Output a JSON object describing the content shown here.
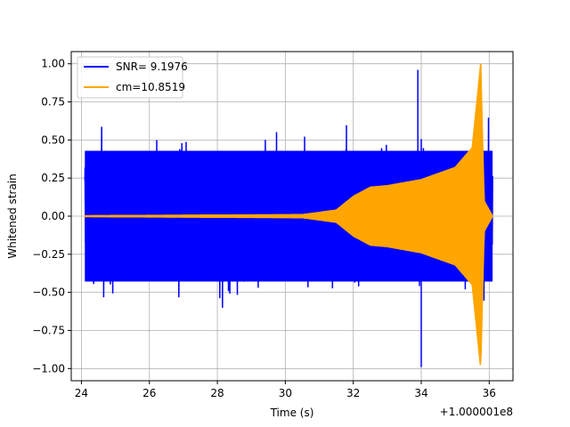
{
  "chart_data": {
    "type": "line",
    "title": "",
    "xlabel": "Time (s)",
    "ylabel": "Whitened strain",
    "x_offset_label": "+1.000001e8",
    "xlim": [
      23.7,
      36.7
    ],
    "ylim": [
      -1.08,
      1.08
    ],
    "x_ticks": [
      24,
      26,
      28,
      30,
      32,
      34,
      36
    ],
    "x_tick_labels": [
      "24",
      "26",
      "28",
      "30",
      "32",
      "34",
      "36"
    ],
    "y_ticks": [
      -1.0,
      -0.75,
      -0.5,
      -0.25,
      0.0,
      0.25,
      0.5,
      0.75,
      1.0
    ],
    "y_tick_labels": [
      "−1.00",
      "−0.75",
      "−0.50",
      "−0.25",
      "0.00",
      "0.25",
      "0.50",
      "0.75",
      "1.00"
    ],
    "grid": true,
    "legend_position": "top-left",
    "series": [
      {
        "name": "SNR= 9.1976",
        "color": "#0000ff",
        "kind": "noise",
        "x_range": [
          24.1,
          36.1
        ],
        "typical_peak": 0.55,
        "max": 0.96,
        "min": -0.99
      },
      {
        "name": "cm=10.8519",
        "color": "#ffa500",
        "kind": "chirp",
        "x_range": [
          24.1,
          36.1
        ],
        "envelope_points": [
          {
            "x": 24.1,
            "y": 0.003
          },
          {
            "x": 30.5,
            "y": 0.01
          },
          {
            "x": 31.5,
            "y": 0.04
          },
          {
            "x": 32.0,
            "y": 0.13
          },
          {
            "x": 32.5,
            "y": 0.19
          },
          {
            "x": 33.0,
            "y": 0.2
          },
          {
            "x": 34.0,
            "y": 0.24
          },
          {
            "x": 35.0,
            "y": 0.32
          },
          {
            "x": 35.5,
            "y": 0.45
          },
          {
            "x": 35.75,
            "y": 1.0
          },
          {
            "x": 35.85,
            "y": 0.1
          },
          {
            "x": 36.1,
            "y": 0.0
          }
        ]
      }
    ]
  }
}
